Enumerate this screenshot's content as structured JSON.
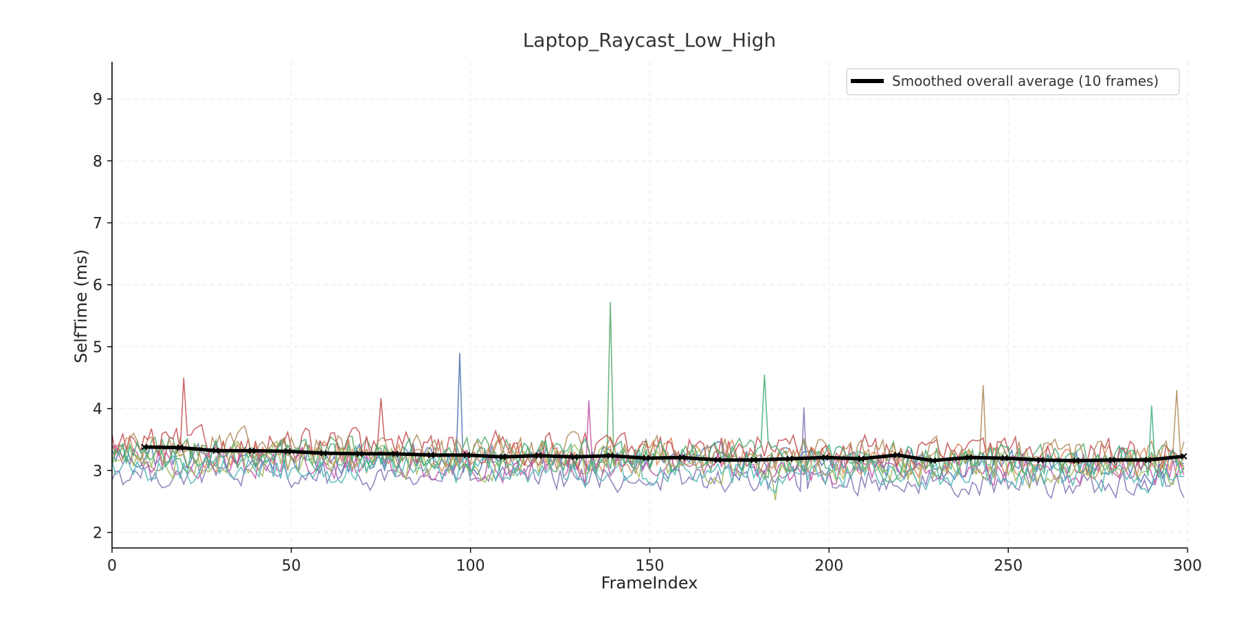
{
  "chart_data": {
    "type": "line",
    "title": "Laptop_Raycast_Low_High",
    "xlabel": "FrameIndex",
    "ylabel": "SelfTime (ms)",
    "xlim": [
      0,
      300
    ],
    "ylim": [
      1.75,
      9.6
    ],
    "x_ticks": [
      0,
      50,
      100,
      150,
      200,
      250,
      300
    ],
    "y_ticks": [
      2,
      3,
      4,
      5,
      6,
      7,
      8,
      9
    ],
    "grid": true,
    "legend_position": "top-right",
    "legend": [
      {
        "label": "Smoothed overall average (10 frames)",
        "color": "#000000"
      }
    ],
    "smoothed_average": {
      "name": "Smoothed overall average (10 frames)",
      "color": "#000000",
      "x": [
        9,
        19,
        29,
        39,
        49,
        59,
        69,
        79,
        89,
        99,
        109,
        119,
        129,
        139,
        149,
        159,
        169,
        179,
        189,
        199,
        209,
        219,
        229,
        239,
        249,
        259,
        269,
        279,
        289,
        299
      ],
      "y": [
        3.38,
        3.37,
        3.32,
        3.32,
        3.31,
        3.28,
        3.27,
        3.27,
        3.25,
        3.25,
        3.22,
        3.24,
        3.22,
        3.24,
        3.2,
        3.21,
        3.17,
        3.17,
        3.19,
        3.21,
        3.19,
        3.25,
        3.16,
        3.21,
        3.2,
        3.17,
        3.16,
        3.17,
        3.17,
        3.23
      ]
    },
    "series": [
      {
        "color": "#4c72b0",
        "base": 3.25,
        "amplitude": 0.34,
        "spikes": [
          [
            97,
            4.9
          ]
        ]
      },
      {
        "color": "#dd8452",
        "base": 3.3,
        "amplitude": 0.36,
        "spikes": []
      },
      {
        "color": "#55a868",
        "base": 3.32,
        "amplitude": 0.36,
        "spikes": [
          [
            139,
            5.72
          ]
        ]
      },
      {
        "color": "#c44e52",
        "base": 3.42,
        "amplitude": 0.38,
        "spikes": [
          [
            20,
            4.5
          ],
          [
            75,
            4.17
          ]
        ]
      },
      {
        "color": "#8172b3",
        "base": 2.95,
        "amplitude": 0.3,
        "spikes": [
          [
            193,
            4.02
          ]
        ]
      },
      {
        "color": "#b08a5a",
        "base": 3.36,
        "amplitude": 0.4,
        "spikes": [
          [
            243,
            4.38
          ],
          [
            297,
            4.3
          ]
        ]
      },
      {
        "color": "#c455a8",
        "base": 3.15,
        "amplitude": 0.34,
        "spikes": [
          [
            133,
            4.13
          ]
        ]
      },
      {
        "color": "#a0b858",
        "base": 3.18,
        "amplitude": 0.36,
        "spikes": [
          [
            185,
            2.52
          ]
        ]
      },
      {
        "color": "#4cb6b6",
        "base": 3.05,
        "amplitude": 0.32,
        "spikes": []
      },
      {
        "color": "#3fae7a",
        "base": 3.28,
        "amplitude": 0.36,
        "spikes": [
          [
            182,
            4.55
          ],
          [
            290,
            4.05
          ]
        ]
      }
    ]
  }
}
